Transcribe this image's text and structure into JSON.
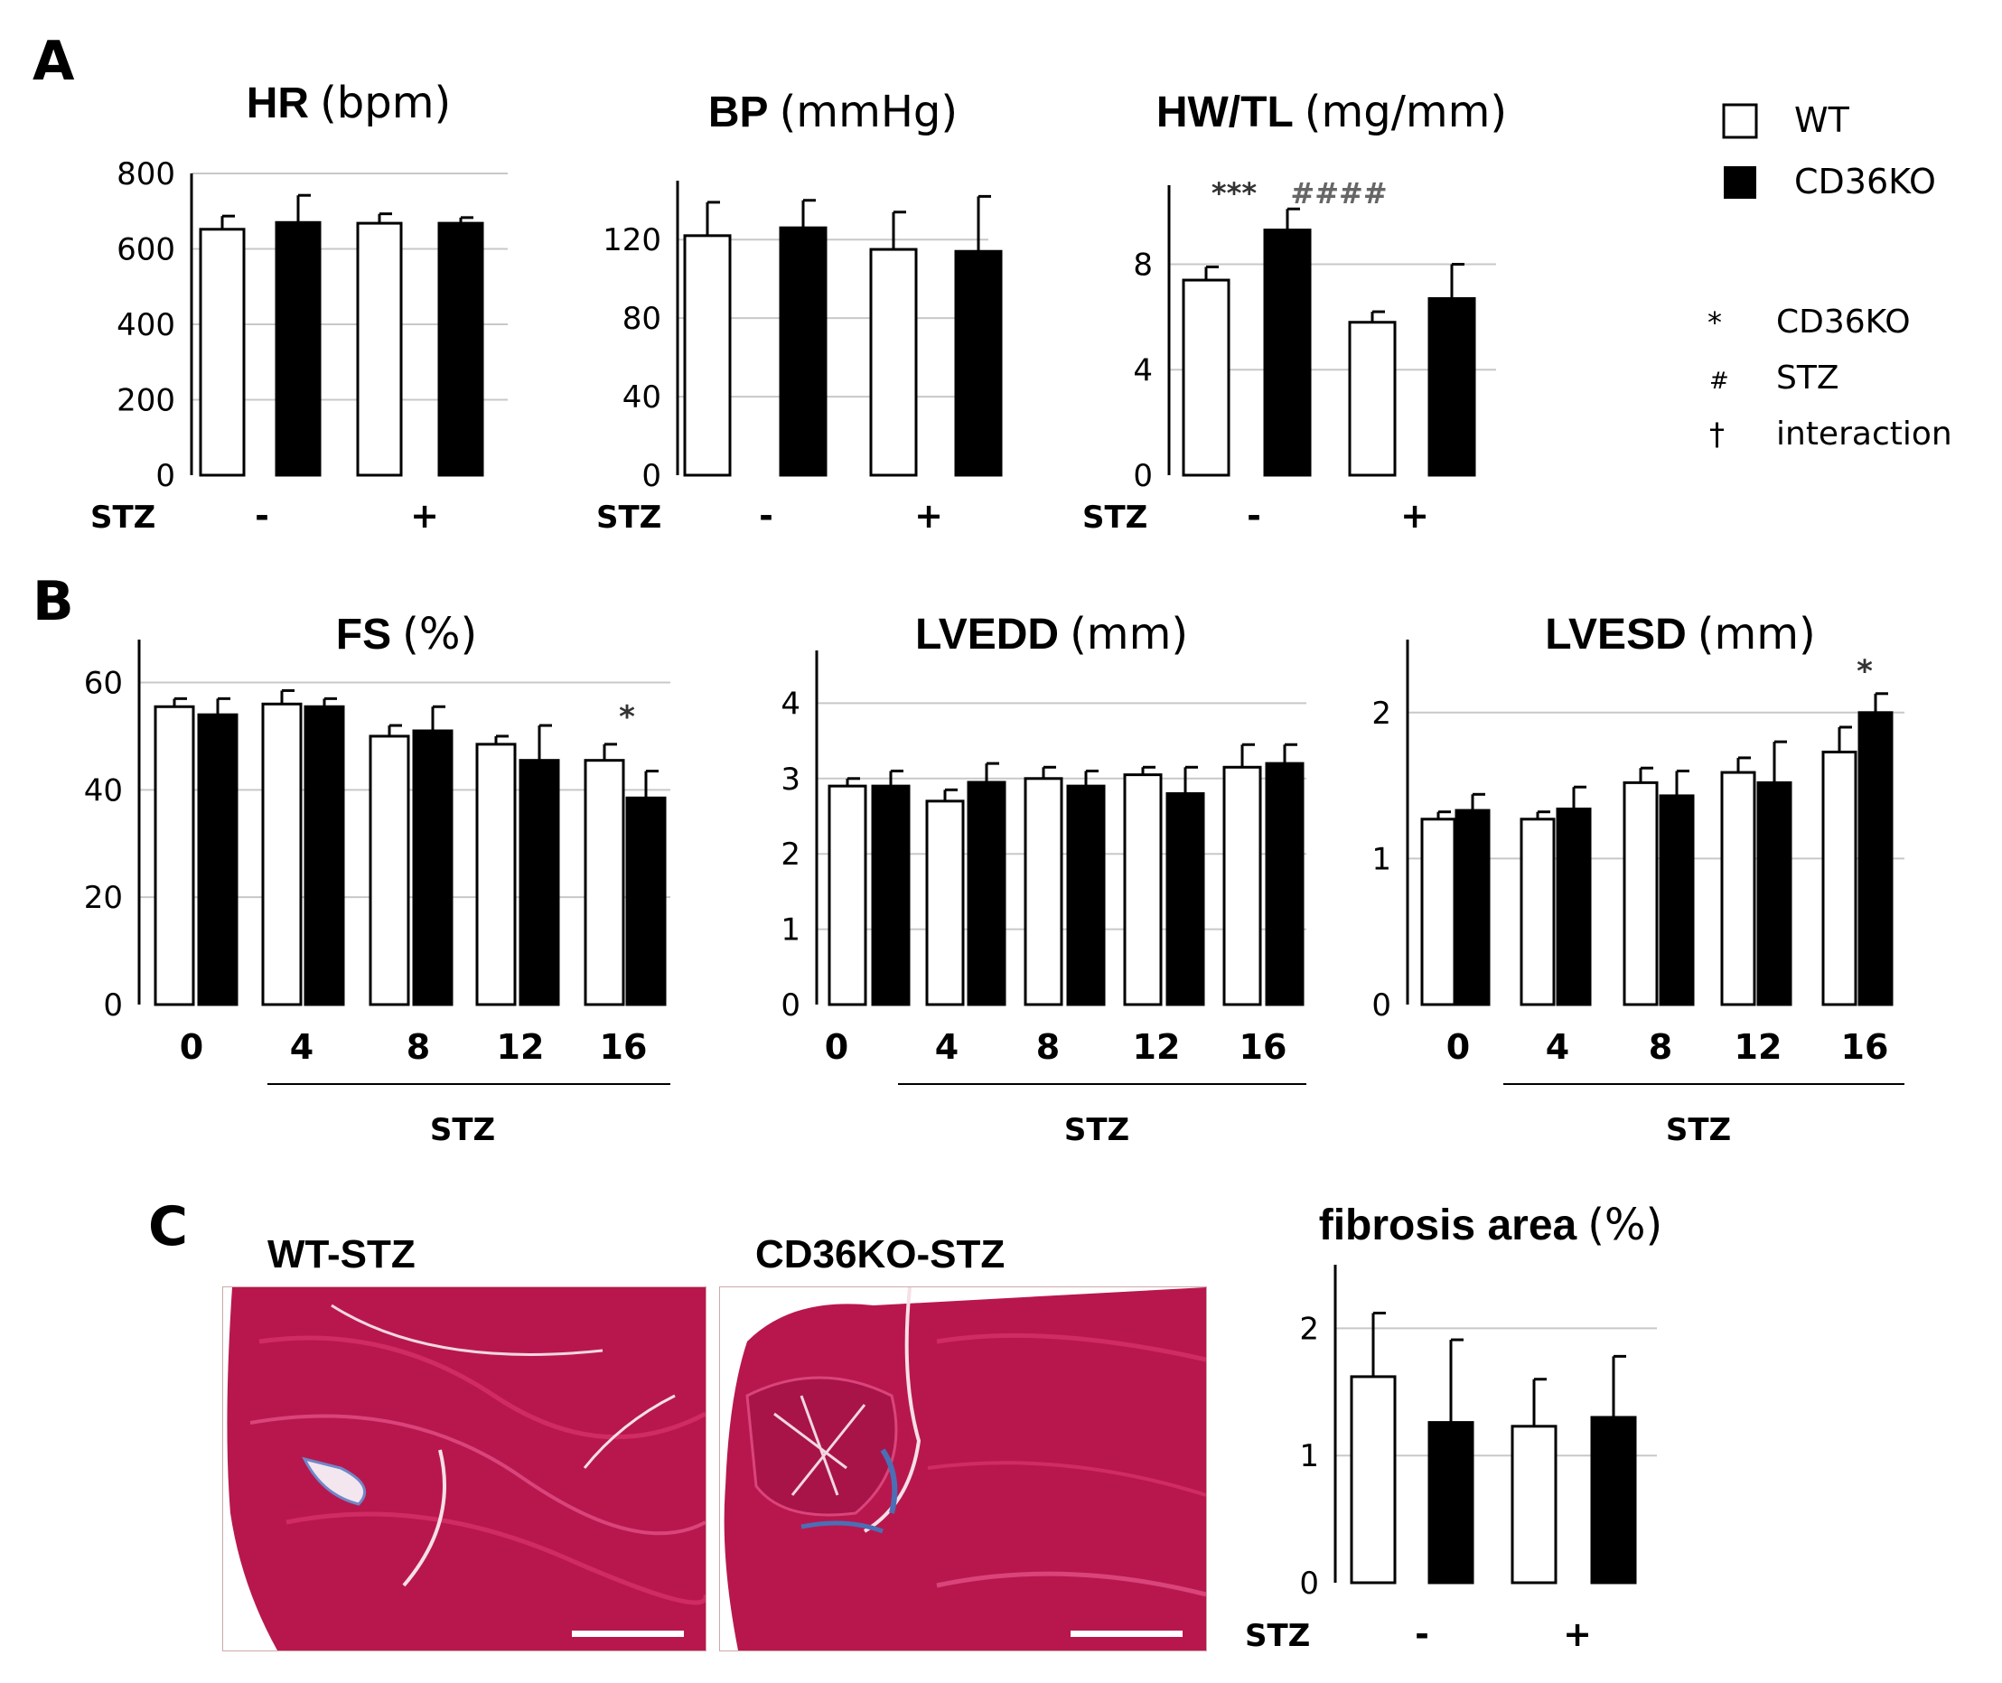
{
  "figure": {
    "panel_letters": {
      "A": "A",
      "B": "B",
      "C": "C"
    },
    "legend": {
      "wt": "WT",
      "cd36ko": "CD36KO",
      "sig": [
        {
          "symbol": "*",
          "label": "CD36KO"
        },
        {
          "symbol": "#",
          "label": "STZ"
        },
        {
          "symbol": "†",
          "label": "interaction"
        }
      ]
    },
    "histology": {
      "left_label": "WT-STZ",
      "right_label": "CD36KO-STZ",
      "colors": {
        "tissue": "#b8174e",
        "fiber": "#d02c63",
        "collagen": "#4a6fb5",
        "background": "#ffffff"
      }
    },
    "colors": {
      "wt_fill": "#ffffff",
      "ko_fill": "#000000",
      "grid": "#c8c8c8",
      "axis": "#000000"
    }
  },
  "chart_data": [
    {
      "id": "hr",
      "type": "bar",
      "title_bold": "HR",
      "title_unit": "(bpm)",
      "ylim": [
        0,
        800
      ],
      "yticks": [
        "0",
        "200",
        "400",
        "600",
        "800"
      ],
      "xlabel": "STZ",
      "categories": [
        "-",
        "+"
      ],
      "series": [
        {
          "name": "WT",
          "values": [
            652,
            668
          ],
          "errors": [
            35,
            25
          ]
        },
        {
          "name": "CD36KO",
          "values": [
            670,
            668
          ],
          "errors": [
            72,
            15
          ]
        }
      ],
      "annotations": []
    },
    {
      "id": "bp",
      "type": "bar",
      "title_bold": "BP",
      "title_unit": "(mmHg)",
      "ylim": [
        0,
        150
      ],
      "yticks": [
        "0",
        "40",
        "80",
        "120"
      ],
      "xlabel": "STZ",
      "categories": [
        "-",
        "+"
      ],
      "series": [
        {
          "name": "WT",
          "values": [
            122,
            115
          ],
          "errors": [
            17,
            19
          ]
        },
        {
          "name": "CD36KO",
          "values": [
            126,
            114
          ],
          "errors": [
            14,
            28
          ]
        }
      ],
      "annotations": []
    },
    {
      "id": "hwtl",
      "type": "bar",
      "title_bold": "HW/TL",
      "title_unit": "(mg/mm)",
      "ylim": [
        0,
        11
      ],
      "yticks": [
        "0",
        "4",
        "8"
      ],
      "xlabel": "STZ",
      "categories": [
        "-",
        "+"
      ],
      "series": [
        {
          "name": "WT",
          "values": [
            7.4,
            5.8
          ],
          "errors": [
            0.5,
            0.4
          ]
        },
        {
          "name": "CD36KO",
          "values": [
            9.3,
            6.7
          ],
          "errors": [
            0.8,
            1.3
          ]
        }
      ],
      "annotations": [
        {
          "text": "***",
          "target": "CD36KO-",
          "y": 10.8
        },
        {
          "text": "####",
          "target": "CD36KO-after",
          "y": 10.8
        }
      ]
    },
    {
      "id": "fs",
      "type": "bar",
      "title_bold": "FS",
      "title_unit": "(%)",
      "ylim": [
        0,
        68
      ],
      "yticks": [
        "0",
        "20",
        "40",
        "60"
      ],
      "xlabel": "STZ",
      "categories": [
        "0",
        "4",
        "8",
        "12",
        "16"
      ],
      "series": [
        {
          "name": "WT",
          "values": [
            55.5,
            56,
            50,
            48.5,
            45.5
          ],
          "errors": [
            1.5,
            2.5,
            2,
            1.5,
            3
          ]
        },
        {
          "name": "CD36KO",
          "values": [
            54,
            55.5,
            51,
            45.5,
            38.5
          ],
          "errors": [
            3,
            1.5,
            4.5,
            6.5,
            5
          ]
        }
      ],
      "annotations": [
        {
          "text": "*",
          "target": "CD36KO-16",
          "y": 54
        }
      ]
    },
    {
      "id": "lvedd",
      "type": "bar",
      "title_bold": "LVEDD",
      "title_unit": "(mm)",
      "ylim": [
        0,
        4.7
      ],
      "yticks": [
        "0",
        "1",
        "2",
        "3",
        "4"
      ],
      "xlabel": "STZ",
      "categories": [
        "0",
        "4",
        "8",
        "12",
        "16"
      ],
      "series": [
        {
          "name": "WT",
          "values": [
            2.9,
            2.7,
            3.0,
            3.05,
            3.15
          ],
          "errors": [
            0.1,
            0.15,
            0.15,
            0.1,
            0.3
          ]
        },
        {
          "name": "CD36KO",
          "values": [
            2.9,
            2.95,
            2.9,
            2.8,
            3.2
          ],
          "errors": [
            0.2,
            0.25,
            0.2,
            0.35,
            0.25
          ]
        }
      ],
      "annotations": []
    },
    {
      "id": "lvesd",
      "type": "bar",
      "title_bold": "LVESD",
      "title_unit": "(mm)",
      "ylim": [
        0,
        2.5
      ],
      "yticks": [
        "0",
        "1",
        "2"
      ],
      "xlabel": "STZ",
      "categories": [
        "0",
        "4",
        "8",
        "12",
        "16"
      ],
      "series": [
        {
          "name": "WT",
          "values": [
            1.27,
            1.27,
            1.52,
            1.59,
            1.73
          ],
          "errors": [
            0.05,
            0.05,
            0.1,
            0.1,
            0.17
          ]
        },
        {
          "name": "CD36KO",
          "values": [
            1.33,
            1.34,
            1.43,
            1.52,
            2.0
          ],
          "errors": [
            0.11,
            0.15,
            0.17,
            0.28,
            0.13
          ]
        }
      ],
      "annotations": [
        {
          "text": "*",
          "target": "CD36KO-16",
          "y": 2.3
        }
      ]
    },
    {
      "id": "fibrosis",
      "type": "bar",
      "title_bold": "fibrosis area",
      "title_unit": "(%)",
      "ylim": [
        0,
        2.5
      ],
      "yticks": [
        "0",
        "1",
        "2"
      ],
      "xlabel": "STZ",
      "categories": [
        "-",
        "+"
      ],
      "series": [
        {
          "name": "WT",
          "values": [
            1.62,
            1.23
          ],
          "errors": [
            0.5,
            0.37
          ]
        },
        {
          "name": "CD36KO",
          "values": [
            1.26,
            1.3
          ],
          "errors": [
            0.65,
            0.48
          ]
        }
      ],
      "annotations": []
    }
  ]
}
